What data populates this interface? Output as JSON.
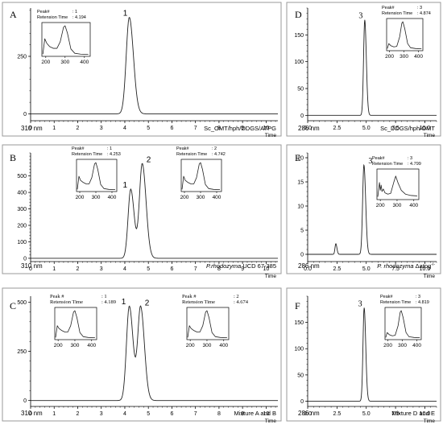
{
  "chart_data": [
    {
      "type": "line",
      "panel_letter": "A",
      "wavelength": "310 nm",
      "sample_label": "Sc_OMT/hph/DDGS/ATPG",
      "x_ticks": [
        "0",
        "1",
        "2",
        "3",
        "4",
        "5",
        "6",
        "7",
        "8",
        "9",
        "10"
      ],
      "x_tick_values": [
        0,
        1,
        2,
        3,
        4,
        5,
        6,
        7,
        8,
        9,
        10
      ],
      "xlabel": "Time",
      "y_ticks": [
        "0",
        "250"
      ],
      "y_tick_values": [
        0,
        250
      ],
      "xlim": [
        0,
        10.5
      ],
      "ylim": [
        -30,
        460
      ],
      "baseline": 0,
      "peaks": [
        {
          "label": "1",
          "time": 4.19,
          "height": 420,
          "width": 0.13
        }
      ],
      "insets": [
        {
          "peak_label": "Peak#",
          "peak_value": ": 1",
          "rt_label": "Retension Time",
          "rt_value": ": 4.194",
          "x_ticks": [
            "200",
            "300",
            "400"
          ],
          "style": "small"
        }
      ],
      "spectrum": {
        "xlim": [
          180,
          430
        ],
        "points": [
          [
            185,
            0.02
          ],
          [
            195,
            0.55
          ],
          [
            205,
            0.4
          ],
          [
            220,
            0.28
          ],
          [
            240,
            0.22
          ],
          [
            258,
            0.22
          ],
          [
            275,
            0.45
          ],
          [
            292,
            0.95
          ],
          [
            300,
            1.0
          ],
          [
            312,
            0.75
          ],
          [
            330,
            0.2
          ],
          [
            350,
            0.05
          ],
          [
            380,
            0.02
          ],
          [
            420,
            0.01
          ]
        ]
      }
    },
    {
      "type": "line",
      "panel_letter": "B",
      "wavelength": "310 nm",
      "sample_label_italic": "P.rhodozyma",
      "sample_label": "UCD 67-385",
      "x_ticks": [
        "0",
        "1",
        "2",
        "3",
        "4",
        "5",
        "6",
        "7",
        "8",
        "9",
        "10"
      ],
      "x_tick_values": [
        0,
        1,
        2,
        3,
        4,
        5,
        6,
        7,
        8,
        9,
        10
      ],
      "xlabel": "Time",
      "y_ticks": [
        "0",
        "100",
        "200",
        "300",
        "400",
        "500"
      ],
      "y_tick_values": [
        0,
        100,
        200,
        300,
        400,
        500
      ],
      "xlim": [
        0,
        10.5
      ],
      "ylim": [
        -20,
        640
      ],
      "baseline": 0,
      "peaks": [
        {
          "label": "1",
          "time": 4.25,
          "height": 420,
          "width": 0.11
        },
        {
          "label": "2",
          "time": 4.74,
          "height": 575,
          "width": 0.12
        }
      ],
      "insets": [
        {
          "peak_label": "Peak#",
          "peak_value": ": 1",
          "rt_label": "Retension Time",
          "rt_value": ": 4.253",
          "x_ticks": [
            "200",
            "300",
            "400"
          ],
          "style": "small"
        },
        {
          "peak_label": "Peak#",
          "peak_value": ": 2",
          "rt_label": "Retension Time",
          "rt_value": ": 4.742",
          "x_ticks": [
            "200",
            "300",
            "400"
          ],
          "style": "small"
        }
      ],
      "spectrum": {
        "xlim": [
          180,
          430
        ],
        "points": [
          [
            185,
            0.02
          ],
          [
            195,
            0.5
          ],
          [
            205,
            0.35
          ],
          [
            220,
            0.28
          ],
          [
            240,
            0.22
          ],
          [
            258,
            0.22
          ],
          [
            275,
            0.45
          ],
          [
            292,
            0.95
          ],
          [
            300,
            1.0
          ],
          [
            312,
            0.75
          ],
          [
            330,
            0.2
          ],
          [
            350,
            0.05
          ],
          [
            380,
            0.02
          ],
          [
            420,
            0.01
          ]
        ]
      }
    },
    {
      "type": "line",
      "panel_letter": "C",
      "wavelength": "310 nm",
      "sample_label": "Mixture A and B",
      "x_ticks": [
        "0",
        "1",
        "2",
        "3",
        "4",
        "5",
        "6",
        "7",
        "8",
        "9",
        "10"
      ],
      "x_tick_values": [
        0,
        1,
        2,
        3,
        4,
        5,
        6,
        7,
        8,
        9,
        10
      ],
      "xlabel": "Time",
      "y_ticks": [
        "0",
        "250",
        "500"
      ],
      "y_tick_values": [
        0,
        250,
        500
      ],
      "xlim": [
        0,
        10.5
      ],
      "ylim": [
        -30,
        530
      ],
      "baseline": 0,
      "peaks": [
        {
          "label": "1",
          "time": 4.19,
          "height": 480,
          "width": 0.12
        },
        {
          "label": "2",
          "time": 4.67,
          "height": 475,
          "width": 0.12
        }
      ],
      "insets": [
        {
          "peak_label": "Peak #",
          "peak_value": ": 1",
          "rt_label": "Retension Time",
          "rt_value": ": 4.189",
          "x_ticks": [
            "200",
            "300",
            "400"
          ],
          "style": "large"
        },
        {
          "peak_label": "Peak #",
          "peak_value": ": 2",
          "rt_label": "Retension Time",
          "rt_value": ": 4.674",
          "x_ticks": [
            "200",
            "300",
            "400"
          ],
          "style": "large"
        }
      ],
      "spectrum": {
        "xlim": [
          180,
          430
        ],
        "points": [
          [
            185,
            0.02
          ],
          [
            195,
            0.45
          ],
          [
            205,
            0.35
          ],
          [
            220,
            0.28
          ],
          [
            240,
            0.22
          ],
          [
            258,
            0.22
          ],
          [
            275,
            0.45
          ],
          [
            292,
            0.95
          ],
          [
            300,
            1.0
          ],
          [
            312,
            0.75
          ],
          [
            330,
            0.2
          ],
          [
            350,
            0.05
          ],
          [
            380,
            0.02
          ],
          [
            420,
            0.01
          ]
        ]
      }
    },
    {
      "type": "line",
      "panel_letter": "D",
      "wavelength": "286 nm",
      "sample_label": "Sc_DDGS/hph/OMT",
      "x_ticks": [
        "0.0",
        "2.5",
        "5.0",
        "7.5",
        "10.0"
      ],
      "x_tick_values": [
        0,
        2.5,
        5,
        7.5,
        10
      ],
      "xlabel": "Time",
      "y_ticks": [
        "0",
        "50",
        "100",
        "150"
      ],
      "y_tick_values": [
        0,
        50,
        100,
        150
      ],
      "xlim": [
        0,
        11
      ],
      "ylim": [
        -10,
        200
      ],
      "baseline": 0,
      "peaks": [
        {
          "label": "3",
          "time": 4.87,
          "height": 178,
          "width": 0.1
        }
      ],
      "insets": [
        {
          "peak_label": "Peak#",
          "peak_value": ": 3",
          "rt_label": "Retension Time",
          "rt_value": ": 4.874",
          "x_ticks": [
            "200",
            "300",
            "400"
          ],
          "style": "small"
        }
      ],
      "spectrum": {
        "xlim": [
          180,
          430
        ],
        "points": [
          [
            185,
            0.02
          ],
          [
            195,
            0.2
          ],
          [
            210,
            0.12
          ],
          [
            230,
            0.08
          ],
          [
            250,
            0.1
          ],
          [
            270,
            0.45
          ],
          [
            285,
            0.95
          ],
          [
            292,
            1.0
          ],
          [
            305,
            0.75
          ],
          [
            325,
            0.2
          ],
          [
            345,
            0.05
          ],
          [
            380,
            0.02
          ],
          [
            420,
            0.01
          ]
        ]
      }
    },
    {
      "type": "line",
      "panel_letter": "E",
      "wavelength": "286 nm",
      "sample_label_italic": "P. rhodozyma",
      "sample_label": "Δatpg",
      "sample_label_sup": "-/-",
      "x_ticks": [
        "0.0",
        "2.5",
        "5.0",
        "7.5",
        "10.0"
      ],
      "x_tick_values": [
        0,
        2.5,
        5,
        7.5,
        10
      ],
      "xlabel": "Time",
      "y_ticks": [
        "0",
        "5",
        "10",
        "15",
        "20"
      ],
      "y_tick_values": [
        0,
        5,
        10,
        15,
        20
      ],
      "xlim": [
        0,
        11
      ],
      "ylim": [
        -1.5,
        21
      ],
      "baseline": 0,
      "peaks": [
        {
          "label": "",
          "time": 2.4,
          "height": 2.2,
          "width": 0.07
        },
        {
          "label": "3",
          "time": 4.8,
          "height": 18.5,
          "width": 0.11
        }
      ],
      "insets": [
        {
          "peak_label": "Peak#",
          "peak_value": ": 3",
          "rt_label": "Retension Time",
          "rt_value": ": 4.799",
          "x_ticks": [
            "200",
            "300",
            "400"
          ],
          "style": "small"
        }
      ],
      "spectrum": {
        "xlim": [
          180,
          430
        ],
        "points": [
          [
            185,
            0.05
          ],
          [
            195,
            0.6
          ],
          [
            200,
            0.3
          ],
          [
            205,
            0.5
          ],
          [
            210,
            0.25
          ],
          [
            218,
            0.35
          ],
          [
            228,
            0.2
          ],
          [
            245,
            0.15
          ],
          [
            262,
            0.18
          ],
          [
            280,
            0.6
          ],
          [
            292,
            0.85
          ],
          [
            305,
            0.6
          ],
          [
            325,
            0.3
          ],
          [
            350,
            0.15
          ],
          [
            380,
            0.1
          ],
          [
            420,
            0.08
          ]
        ]
      }
    },
    {
      "type": "line",
      "panel_letter": "F",
      "wavelength": "286 nm",
      "sample_label": "Mixture D and E",
      "x_ticks": [
        "0.0",
        "2.5",
        "5.0",
        "7.5",
        "10.0"
      ],
      "x_tick_values": [
        0,
        2.5,
        5,
        7.5,
        10
      ],
      "xlabel": "Time",
      "y_ticks": [
        "0",
        "50",
        "100",
        "150"
      ],
      "y_tick_values": [
        0,
        50,
        100,
        150
      ],
      "xlim": [
        0,
        11
      ],
      "ylim": [
        -10,
        200
      ],
      "baseline": 0,
      "peaks": [
        {
          "label": "3",
          "time": 4.82,
          "height": 178,
          "width": 0.1
        }
      ],
      "insets": [
        {
          "peak_label": "Peak#",
          "peak_value": ": 3",
          "rt_label": "Retension Time",
          "rt_value": ": 4.819",
          "x_ticks": [
            "200",
            "300",
            "400"
          ],
          "style": "small"
        }
      ],
      "spectrum": {
        "xlim": [
          180,
          430
        ],
        "points": [
          [
            185,
            0.02
          ],
          [
            195,
            0.2
          ],
          [
            210,
            0.12
          ],
          [
            230,
            0.08
          ],
          [
            250,
            0.1
          ],
          [
            270,
            0.45
          ],
          [
            285,
            0.95
          ],
          [
            292,
            1.0
          ],
          [
            305,
            0.75
          ],
          [
            325,
            0.2
          ],
          [
            345,
            0.05
          ],
          [
            380,
            0.02
          ],
          [
            420,
            0.01
          ]
        ]
      }
    }
  ]
}
